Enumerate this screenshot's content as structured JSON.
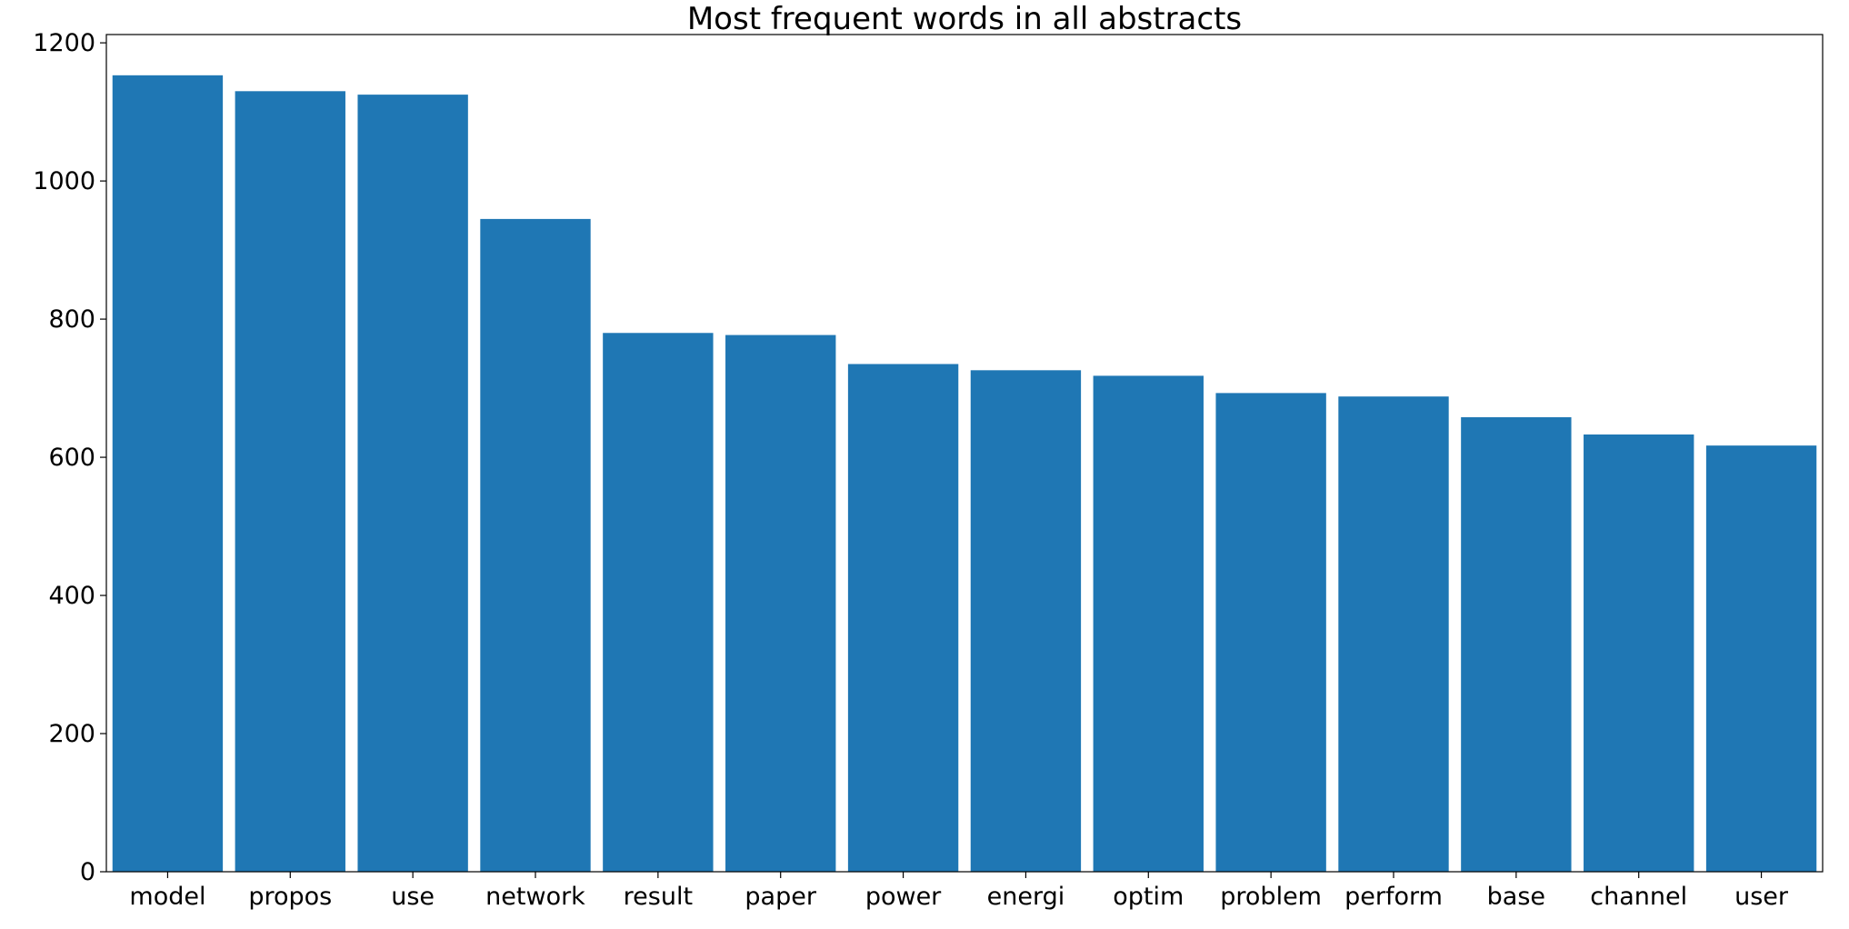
{
  "chart_data": {
    "type": "bar",
    "title": "Most frequent words in all abstracts",
    "xlabel": "",
    "ylabel": "",
    "categories": [
      "model",
      "propos",
      "use",
      "network",
      "result",
      "paper",
      "power",
      "energi",
      "optim",
      "problem",
      "perform",
      "base",
      "channel",
      "user"
    ],
    "values": [
      1153,
      1130,
      1125,
      945,
      780,
      777,
      735,
      726,
      718,
      693,
      688,
      658,
      633,
      617
    ],
    "ylim": [
      0,
      1212
    ],
    "yticks": [
      0,
      200,
      400,
      600,
      800,
      1000,
      1200
    ],
    "grid": false,
    "legend": "none",
    "bar_color": "#1f77b4"
  }
}
